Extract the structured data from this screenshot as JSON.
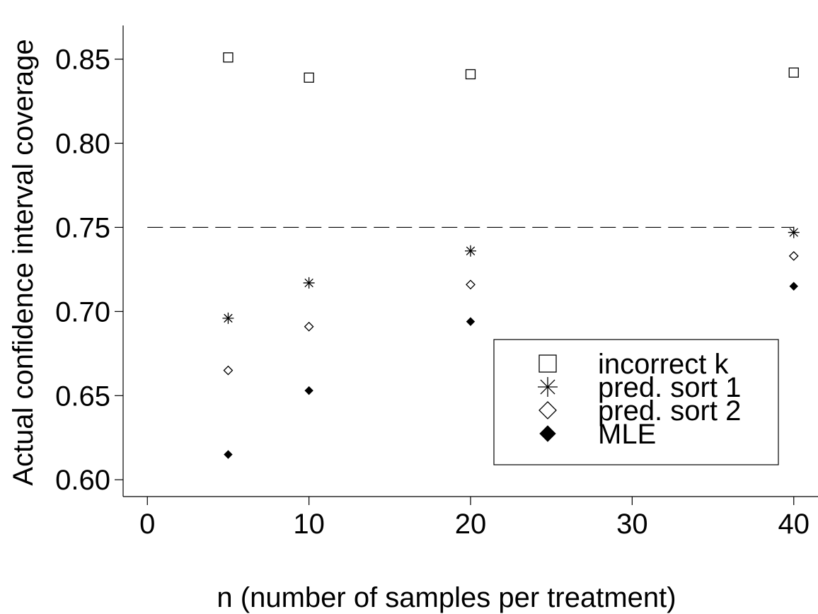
{
  "chart_data": {
    "type": "scatter",
    "title": "",
    "xlabel": "n (number of samples per treatment)",
    "ylabel": "Actual confidence interval coverage",
    "xlim": [
      -1.5,
      41.5
    ],
    "ylim": [
      0.59,
      0.87
    ],
    "x_ticks": [
      0,
      10,
      20,
      30,
      40
    ],
    "x_tick_labels": [
      "0",
      "10",
      "20",
      "30",
      "40"
    ],
    "y_ticks": [
      0.6,
      0.65,
      0.7,
      0.75,
      0.8,
      0.85
    ],
    "y_tick_labels": [
      "0.60",
      "0.65",
      "0.70",
      "0.75",
      "0.80",
      "0.85"
    ],
    "grid": false,
    "legend_position": "bottom-right",
    "reference_line": {
      "y": 0.75,
      "x_range": [
        0,
        40
      ],
      "style": "dashed"
    },
    "series": [
      {
        "name": "incorrect k",
        "marker": "hollow-square",
        "x": [
          5,
          10,
          20,
          40
        ],
        "y": [
          0.851,
          0.839,
          0.841,
          0.842
        ]
      },
      {
        "name": "pred. sort 1",
        "marker": "star",
        "x": [
          5,
          10,
          20,
          40
        ],
        "y": [
          0.696,
          0.717,
          0.736,
          0.747
        ]
      },
      {
        "name": "pred. sort 2",
        "marker": "hollow-diamond",
        "x": [
          5,
          10,
          20,
          40
        ],
        "y": [
          0.665,
          0.691,
          0.716,
          0.733
        ]
      },
      {
        "name": "MLE",
        "marker": "solid-diamond",
        "x": [
          5,
          10,
          20,
          40
        ],
        "y": [
          0.615,
          0.653,
          0.694,
          0.715
        ]
      }
    ]
  }
}
